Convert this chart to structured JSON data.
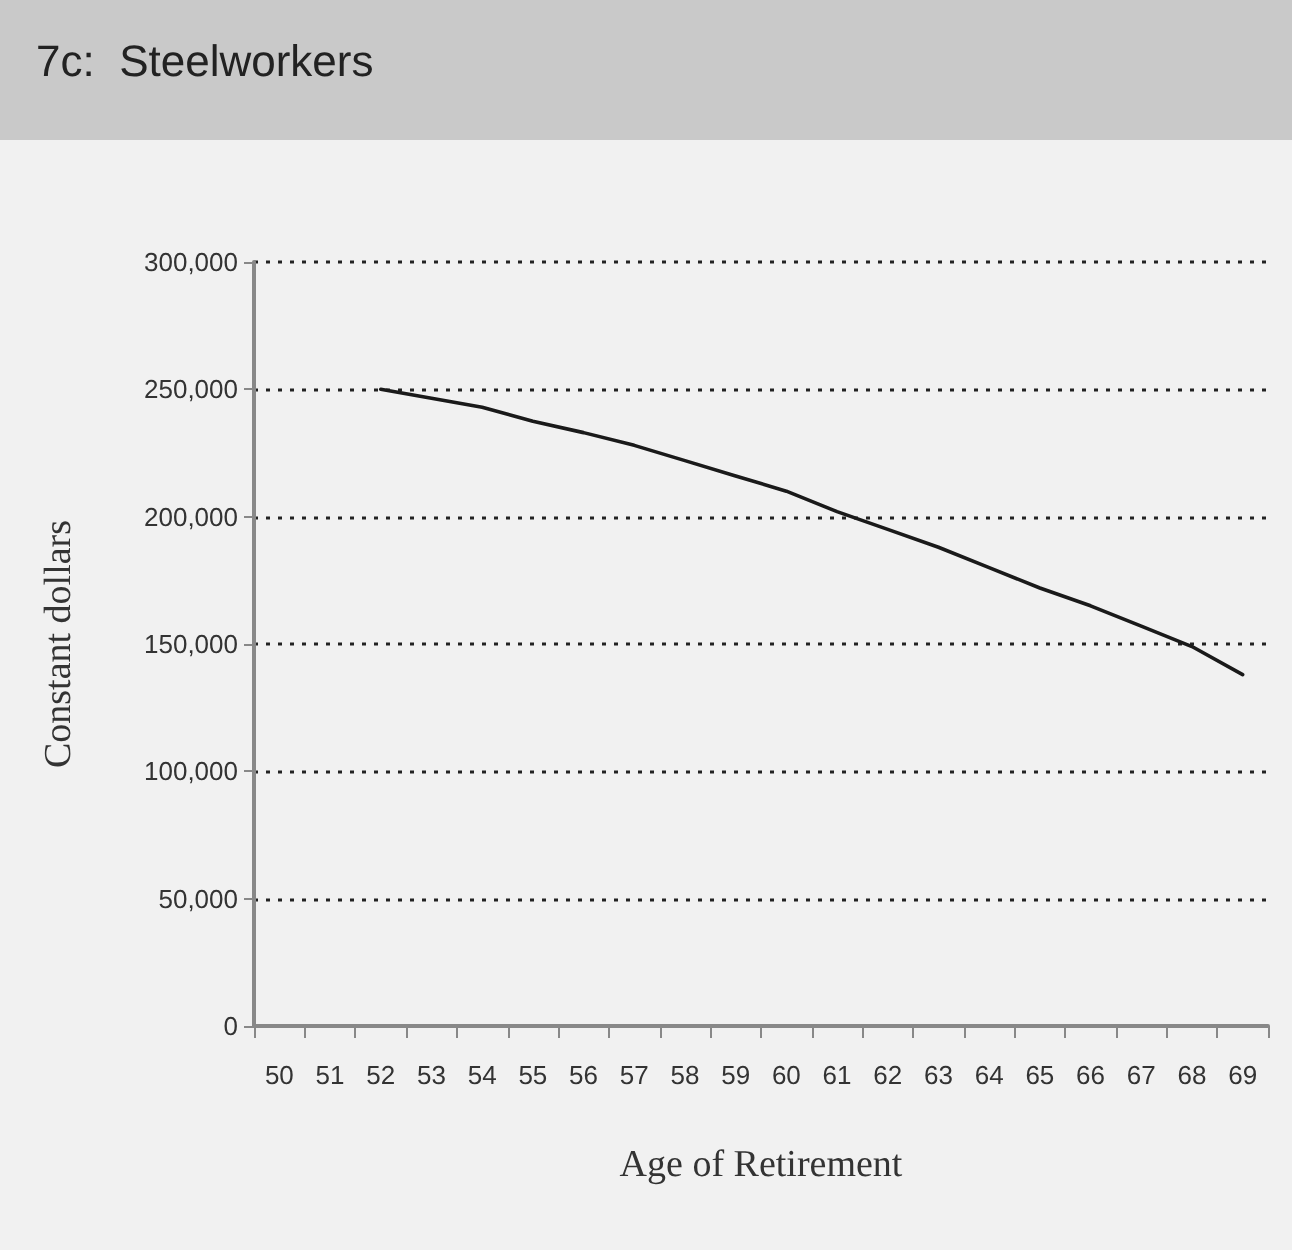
{
  "chart_data": {
    "type": "line",
    "title": "7c:  Steelworkers",
    "xlabel": "Age of Retirement",
    "ylabel": "Constant dollars",
    "categories": [
      "50",
      "51",
      "52",
      "53",
      "54",
      "55",
      "56",
      "57",
      "58",
      "59",
      "60",
      "61",
      "62",
      "63",
      "64",
      "65",
      "66",
      "67",
      "68",
      "69"
    ],
    "series": [
      {
        "color": "#1a1a1a",
        "values": [
          null,
          null,
          250000,
          246500,
          243000,
          237500,
          233000,
          228000,
          222000,
          216000,
          210000,
          202000,
          195000,
          188000,
          180000,
          172000,
          165000,
          157000,
          149000,
          138000
        ]
      }
    ],
    "ylim": [
      0,
      300000
    ],
    "yticks": [
      0,
      {
        "value": 50000,
        "label": "50,000"
      },
      {
        "value": 100000,
        "label": "100,000"
      },
      {
        "value": 150000,
        "label": "150,000"
      },
      {
        "value": 200000,
        "label": "200,000"
      },
      {
        "value": 250000,
        "label": "250,000"
      },
      {
        "value": 300000,
        "label": "300,000"
      }
    ],
    "grid": "y",
    "marker": "none",
    "line_style": "solid"
  }
}
